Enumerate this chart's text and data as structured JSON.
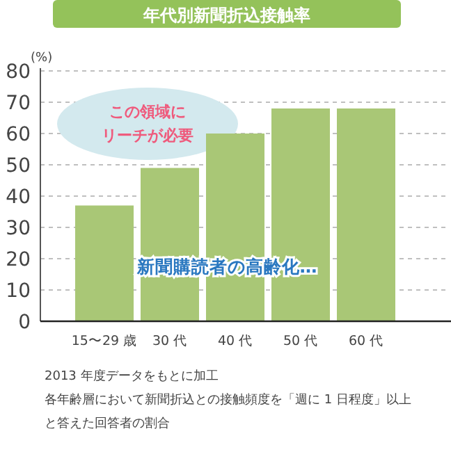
{
  "chart_data": {
    "type": "bar",
    "title": "年代別新聞折込接触率",
    "ylabel": "(%)",
    "categories": [
      "15〜29 歳",
      "30 代",
      "40 代",
      "50 代",
      "60 代"
    ],
    "values": [
      37,
      49,
      60,
      68,
      68
    ],
    "color": "#a9c776",
    "ylim": [
      0,
      80
    ],
    "yticks": [
      0,
      10,
      20,
      30,
      40,
      50,
      60,
      70,
      80
    ],
    "grid": "y",
    "annotations": [
      "この領域に",
      "リーチが必要",
      "新聞購読者の高齢化…",
      "2013 年度データをもとに加工",
      "各年齢層において新聞折込との接触頻度を「週に 1 日程度」以上",
      "と答えた回答者の割合"
    ]
  }
}
